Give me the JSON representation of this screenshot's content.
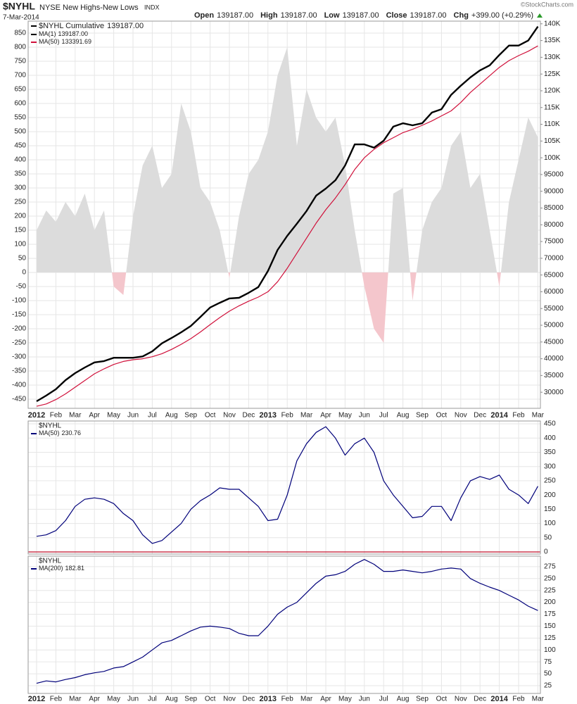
{
  "header": {
    "symbol": "$NYHL",
    "name": "NYSE New Highs-New Lows",
    "exchange": "INDX",
    "date": "7-Mar-2014",
    "credit": "©StockCharts.com",
    "quote": [
      {
        "label": "Open",
        "value": "139187.00"
      },
      {
        "label": "High",
        "value": "139187.00"
      },
      {
        "label": "Low",
        "value": "139187.00"
      },
      {
        "label": "Close",
        "value": "139187.00"
      },
      {
        "label": "Chg",
        "value": "+399.00 (+0.29%)"
      }
    ]
  },
  "chart_data": [
    {
      "type": "line",
      "grid": true,
      "categories": [
        "2012",
        null,
        "Feb",
        null,
        "Mar",
        null,
        "Apr",
        null,
        "May",
        null,
        "Jun",
        null,
        "Jul",
        null,
        "Aug",
        null,
        "Sep",
        null,
        "Oct",
        null,
        "Nov",
        null,
        "Dec",
        null,
        "2013",
        null,
        "Feb",
        null,
        "Mar",
        null,
        "Apr",
        null,
        "May",
        null,
        "Jun",
        null,
        "Jul",
        null,
        "Aug",
        null,
        "Sep",
        null,
        "Oct",
        null,
        "Nov",
        null,
        "Dec",
        null,
        "2014",
        null,
        "Feb",
        null,
        "Mar"
      ],
      "ylim": [
        -482.5,
        892.5
      ],
      "yticks": [
        -450,
        -400,
        -350,
        -300,
        -250,
        -200,
        -150,
        -100,
        -50,
        0,
        50,
        100,
        150,
        200,
        250,
        300,
        350,
        400,
        450,
        500,
        550,
        600,
        650,
        700,
        750,
        800,
        850
      ],
      "y2lim": [
        25200,
        140800
      ],
      "y2ticks": [
        {
          "value": 140000,
          "label": "140K"
        },
        {
          "value": 135000,
          "label": "135K"
        },
        {
          "value": 130000,
          "label": "130K"
        },
        {
          "value": 125000,
          "label": "125K"
        },
        {
          "value": 120000,
          "label": "120K"
        },
        {
          "value": 115000,
          "label": "115K"
        },
        {
          "value": 110000,
          "label": "110K"
        },
        {
          "value": 105000,
          "label": "105K"
        },
        {
          "value": 100000,
          "label": "100K"
        },
        95000,
        90000,
        85000,
        80000,
        75000,
        70000,
        65000,
        60000,
        55000,
        50000,
        45000,
        40000,
        35000,
        30000
      ],
      "area": {
        "color": "#dcdcdc",
        "negative_color": "#f4c6cc",
        "values": [
          150,
          220,
          180,
          250,
          200,
          280,
          150,
          220,
          -50,
          -80,
          200,
          380,
          450,
          300,
          350,
          600,
          500,
          300,
          250,
          150,
          -20,
          200,
          350,
          400,
          500,
          700,
          800,
          450,
          650,
          550,
          500,
          550,
          380,
          150,
          -50,
          -200,
          -250,
          280,
          300,
          -100,
          150,
          250,
          300,
          450,
          500,
          300,
          350,
          150,
          -50,
          250,
          400,
          550,
          480
        ]
      },
      "legend_title": "$NYHL Cumulative",
      "legend_value": "139187.00",
      "series": [
        {
          "name": "MA(1)",
          "label": "139187.00",
          "color": "#000000",
          "axis": "y2",
          "values": [
            27300,
            29000,
            30900,
            33600,
            35700,
            37400,
            38900,
            39300,
            40300,
            40300,
            40300,
            40700,
            42200,
            44600,
            46200,
            47900,
            49800,
            52500,
            55300,
            56700,
            58000,
            58200,
            59700,
            61400,
            66200,
            72500,
            76700,
            80300,
            84100,
            88700,
            90800,
            93300,
            97700,
            104000,
            104000,
            103000,
            105100,
            109300,
            110300,
            109700,
            110300,
            113500,
            114500,
            118800,
            121500,
            124000,
            126100,
            127600,
            130700,
            133500,
            133500,
            135000,
            139187
          ]
        },
        {
          "name": "MA(50)",
          "label": "133391.69",
          "color": "#d0103a",
          "axis": "y2",
          "values": [
            25800,
            26500,
            27800,
            29500,
            31500,
            33500,
            35500,
            37000,
            38300,
            39200,
            39700,
            40000,
            40600,
            41500,
            42800,
            44300,
            46000,
            48000,
            50200,
            52300,
            54200,
            55800,
            57200,
            58400,
            60000,
            63000,
            67000,
            71500,
            76000,
            80500,
            84500,
            88000,
            92000,
            96500,
            100000,
            102500,
            104500,
            106000,
            107500,
            108500,
            109700,
            111000,
            112500,
            114000,
            116500,
            119500,
            122000,
            124500,
            127000,
            129000,
            130500,
            131800,
            133391.69
          ]
        }
      ]
    },
    {
      "type": "line",
      "title": "$NYHL",
      "grid": true,
      "zero_line_color": "#c0102a",
      "ylim": [
        -7.4,
        460
      ],
      "yticks": [
        0,
        50,
        100,
        150,
        200,
        250,
        300,
        350,
        400,
        450
      ],
      "series": [
        {
          "name": "MA(50)",
          "label": "230.76",
          "color": "#00007a",
          "values": [
            55,
            60,
            75,
            110,
            160,
            185,
            190,
            185,
            170,
            135,
            110,
            60,
            30,
            40,
            70,
            100,
            150,
            180,
            200,
            225,
            220,
            220,
            190,
            160,
            110,
            115,
            200,
            320,
            380,
            420,
            440,
            400,
            340,
            380,
            400,
            350,
            250,
            200,
            160,
            120,
            125,
            160,
            160,
            110,
            190,
            250,
            265,
            255,
            270,
            220,
            200,
            170,
            230.76
          ]
        }
      ]
    },
    {
      "type": "line",
      "title": "$NYHL",
      "grid": true,
      "ylim": [
        8.7,
        297
      ],
      "yticks": [
        25,
        50,
        75,
        100,
        125,
        150,
        175,
        200,
        225,
        250,
        275
      ],
      "series": [
        {
          "name": "MA(200)",
          "label": "182.81",
          "color": "#00007a",
          "values": [
            30,
            35,
            33,
            38,
            42,
            48,
            52,
            55,
            62,
            65,
            75,
            85,
            100,
            115,
            120,
            130,
            140,
            148,
            150,
            148,
            145,
            135,
            130,
            130,
            150,
            175,
            190,
            200,
            220,
            240,
            255,
            258,
            265,
            280,
            290,
            280,
            265,
            265,
            268,
            265,
            262,
            265,
            270,
            272,
            270,
            250,
            240,
            232,
            225,
            215,
            205,
            192,
            182.81
          ]
        }
      ]
    }
  ]
}
